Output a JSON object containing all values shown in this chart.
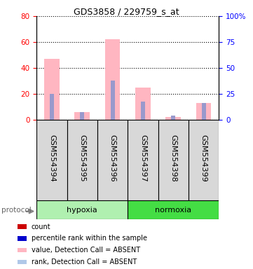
{
  "title": "GDS3858 / 229759_s_at",
  "samples": [
    "GSM554394",
    "GSM554395",
    "GSM554396",
    "GSM554397",
    "GSM554398",
    "GSM554399"
  ],
  "pink_values": [
    47,
    6,
    62,
    25,
    2,
    13
  ],
  "blue_values": [
    20,
    6,
    30,
    14,
    3,
    13
  ],
  "left_ylim": [
    0,
    80
  ],
  "right_ylim": [
    0,
    100
  ],
  "left_yticks": [
    0,
    20,
    40,
    60,
    80
  ],
  "right_yticks": [
    0,
    25,
    50,
    75,
    100
  ],
  "right_yticklabels": [
    "0",
    "25",
    "50",
    "75",
    "100%"
  ],
  "hypoxia_color": "#b0f0b0",
  "normoxia_color": "#44dd44",
  "pink_color": "#ffb6c1",
  "blue_color": "#9999cc",
  "dark_red": "#cc0000",
  "dark_blue": "#0000cc",
  "legend_colors": [
    "#cc0000",
    "#0000cc",
    "#ffb6c1",
    "#b0c8e8"
  ],
  "legend_labels": [
    "count",
    "percentile rank within the sample",
    "value, Detection Call = ABSENT",
    "rank, Detection Call = ABSENT"
  ],
  "sample_box_color": "#d8d8d8",
  "title_fontsize": 9,
  "tick_fontsize": 7.5,
  "label_fontsize": 8,
  "legend_fontsize": 7
}
